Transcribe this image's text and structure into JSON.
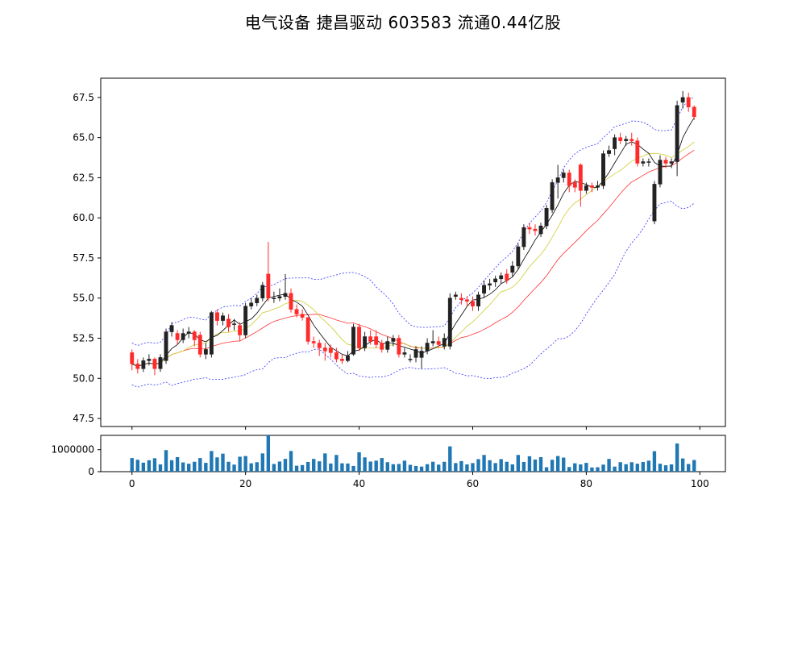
{
  "chart_data": {
    "type": "candlestick",
    "title": "电气设备 捷昌驱动 603583 流通0.44亿股",
    "x": {
      "ticks": [
        0,
        20,
        40,
        60,
        80,
        100
      ],
      "range": [
        -5.5,
        104.5
      ]
    },
    "price": {
      "ylim": [
        47.0,
        68.7
      ],
      "ticks": [
        "47.5",
        "50.0",
        "52.5",
        "55.0",
        "57.5",
        "60.0",
        "62.5",
        "65.0",
        "67.5"
      ]
    },
    "volume": {
      "ylim": [
        0,
        1650000
      ],
      "ticks": [
        "0",
        "1000000"
      ]
    },
    "colors": {
      "up": "#222222",
      "down": "#ff2a2a",
      "bollinger": "#3333ff",
      "ma_short": "#000000",
      "ma_mid": "#cccc33",
      "ma_long": "#ff3333",
      "volume": "#1f77b4"
    },
    "candles": [
      [
        51.6,
        50.9,
        51.8,
        50.5
      ],
      [
        50.9,
        50.6,
        51.2,
        50.3
      ],
      [
        50.6,
        51.1,
        51.3,
        50.4
      ],
      [
        51.1,
        51.2,
        51.5,
        50.8
      ],
      [
        51.2,
        50.6,
        51.3,
        50.2
      ],
      [
        50.6,
        51.3,
        51.5,
        50.4
      ],
      [
        51.1,
        52.9,
        53.1,
        50.9
      ],
      [
        52.9,
        53.3,
        53.5,
        52.6
      ],
      [
        52.8,
        52.4,
        53.0,
        52.1
      ],
      [
        52.4,
        52.8,
        53.1,
        52.2
      ],
      [
        52.8,
        52.9,
        53.2,
        52.5
      ],
      [
        52.9,
        52.4,
        53.0,
        52.0
      ],
      [
        52.7,
        51.5,
        52.9,
        51.3
      ],
      [
        51.5,
        51.8,
        52.2,
        51.2
      ],
      [
        51.5,
        54.1,
        54.2,
        51.3
      ],
      [
        54.1,
        53.6,
        54.3,
        53.3
      ],
      [
        53.6,
        53.9,
        54.1,
        53.3
      ],
      [
        53.7,
        53.2,
        54.0,
        52.9
      ],
      [
        53.4,
        53.4,
        53.7,
        53.0
      ],
      [
        53.3,
        52.7,
        53.5,
        52.3
      ],
      [
        52.7,
        54.5,
        54.7,
        52.5
      ],
      [
        54.5,
        54.7,
        55.0,
        54.3
      ],
      [
        54.7,
        55.0,
        55.2,
        54.5
      ],
      [
        55.0,
        55.8,
        56.0,
        54.8
      ],
      [
        56.5,
        55.0,
        58.5,
        54.8
      ],
      [
        55.0,
        55.0,
        55.4,
        54.7
      ],
      [
        55.0,
        55.1,
        55.6,
        54.8
      ],
      [
        55.1,
        55.3,
        56.5,
        54.9
      ],
      [
        55.3,
        54.3,
        55.6,
        54.1
      ],
      [
        54.3,
        54.0,
        54.6,
        53.8
      ],
      [
        54.0,
        53.8,
        54.3,
        53.6
      ],
      [
        53.8,
        52.3,
        53.8,
        52.1
      ],
      [
        52.3,
        52.2,
        52.6,
        51.9
      ],
      [
        52.2,
        51.9,
        52.4,
        51.4
      ],
      [
        51.9,
        51.7,
        52.2,
        51.1
      ],
      [
        51.9,
        51.6,
        52.1,
        51.3
      ],
      [
        51.6,
        51.2,
        51.9,
        51.0
      ],
      [
        51.2,
        51.1,
        51.5,
        50.9
      ],
      [
        51.1,
        51.4,
        51.7,
        51.0
      ],
      [
        51.5,
        53.2,
        53.4,
        51.4
      ],
      [
        53.2,
        51.9,
        53.4,
        51.7
      ],
      [
        51.9,
        52.6,
        52.9,
        51.7
      ],
      [
        52.6,
        52.3,
        53.0,
        52.1
      ],
      [
        52.6,
        52.1,
        53.0,
        51.9
      ],
      [
        52.2,
        51.8,
        52.4,
        51.6
      ],
      [
        51.8,
        52.3,
        52.6,
        51.6
      ],
      [
        52.3,
        52.5,
        52.7,
        52.0
      ],
      [
        52.5,
        51.5,
        52.7,
        51.3
      ],
      [
        51.5,
        51.6,
        51.9,
        51.3
      ],
      [
        51.2,
        51.2,
        51.5,
        51.0
      ],
      [
        51.3,
        51.8,
        52.0,
        51.0
      ],
      [
        51.3,
        51.7,
        52.0,
        50.6
      ],
      [
        51.7,
        52.2,
        52.5,
        51.5
      ],
      [
        52.2,
        52.3,
        53.0,
        52.0
      ],
      [
        52.3,
        52.1,
        52.6,
        51.9
      ],
      [
        52.0,
        52.5,
        52.8,
        51.8
      ],
      [
        52.0,
        55.0,
        55.3,
        51.8
      ],
      [
        55.1,
        55.2,
        55.4,
        54.9
      ],
      [
        55.0,
        54.9,
        55.3,
        54.6
      ],
      [
        54.9,
        54.8,
        55.1,
        54.5
      ],
      [
        54.8,
        54.5,
        55.1,
        54.2
      ],
      [
        54.5,
        55.2,
        55.4,
        54.2
      ],
      [
        55.3,
        55.8,
        56.1,
        55.0
      ],
      [
        55.8,
        55.9,
        56.2,
        55.5
      ],
      [
        56.0,
        56.2,
        56.4,
        55.7
      ],
      [
        56.2,
        56.4,
        56.6,
        55.9
      ],
      [
        56.5,
        56.1,
        56.8,
        55.9
      ],
      [
        56.6,
        57.0,
        57.3,
        56.3
      ],
      [
        57.0,
        58.2,
        58.4,
        56.8
      ],
      [
        58.2,
        59.4,
        59.6,
        58.0
      ],
      [
        59.4,
        59.3,
        59.7,
        59.0
      ],
      [
        59.3,
        59.2,
        59.6,
        58.9
      ],
      [
        59.0,
        59.5,
        59.7,
        58.8
      ],
      [
        59.5,
        60.6,
        60.8,
        59.3
      ],
      [
        60.5,
        62.2,
        62.4,
        60.3
      ],
      [
        62.2,
        62.5,
        63.3,
        61.2
      ],
      [
        62.5,
        62.8,
        63.0,
        62.2
      ],
      [
        62.8,
        62.0,
        63.0,
        61.6
      ],
      [
        62.2,
        61.9,
        62.4,
        61.6
      ],
      [
        63.3,
        61.7,
        63.4,
        60.7
      ],
      [
        61.7,
        62.0,
        62.2,
        61.5
      ],
      [
        62.0,
        61.9,
        62.2,
        61.6
      ],
      [
        61.9,
        62.0,
        62.3,
        61.7
      ],
      [
        62.0,
        64.0,
        64.2,
        61.8
      ],
      [
        64.0,
        64.2,
        64.5,
        63.8
      ],
      [
        64.3,
        65.0,
        65.2,
        63.9
      ],
      [
        65.0,
        64.8,
        65.3,
        64.6
      ],
      [
        64.8,
        64.9,
        65.1,
        64.5
      ],
      [
        64.9,
        64.8,
        65.3,
        64.5
      ],
      [
        64.8,
        63.4,
        65.0,
        63.2
      ],
      [
        63.4,
        63.5,
        63.7,
        63.2
      ],
      [
        63.5,
        63.5,
        63.7,
        63.2
      ],
      [
        59.8,
        62.1,
        62.3,
        59.6
      ],
      [
        62.1,
        63.6,
        63.9,
        61.9
      ],
      [
        63.6,
        63.4,
        63.8,
        63.1
      ],
      [
        63.4,
        63.5,
        63.7,
        63.1
      ],
      [
        63.5,
        67.0,
        67.3,
        62.6
      ],
      [
        67.2,
        67.5,
        67.9,
        66.8
      ],
      [
        67.5,
        66.9,
        67.8,
        66.6
      ],
      [
        66.9,
        66.3,
        67.0,
        66.1
      ]
    ],
    "volume_values": [
      620000,
      540000,
      410000,
      520000,
      610000,
      330000,
      980000,
      520000,
      660000,
      420000,
      360000,
      450000,
      620000,
      400000,
      940000,
      650000,
      820000,
      450000,
      320000,
      680000,
      710000,
      380000,
      430000,
      830000,
      1650000,
      350000,
      460000,
      580000,
      940000,
      270000,
      300000,
      440000,
      580000,
      470000,
      830000,
      370000,
      760000,
      380000,
      370000,
      260000,
      880000,
      650000,
      460000,
      500000,
      620000,
      430000,
      340000,
      350000,
      500000,
      310000,
      260000,
      230000,
      340000,
      450000,
      320000,
      450000,
      1150000,
      390000,
      480000,
      330000,
      390000,
      570000,
      760000,
      520000,
      390000,
      570000,
      450000,
      330000,
      760000,
      440000,
      700000,
      550000,
      660000,
      200000,
      540000,
      710000,
      640000,
      210000,
      380000,
      330000,
      400000,
      190000,
      200000,
      320000,
      580000,
      230000,
      430000,
      340000,
      430000,
      360000,
      440000,
      500000,
      930000,
      360000,
      290000,
      330000,
      1280000,
      600000,
      350000,
      530000
    ]
  }
}
